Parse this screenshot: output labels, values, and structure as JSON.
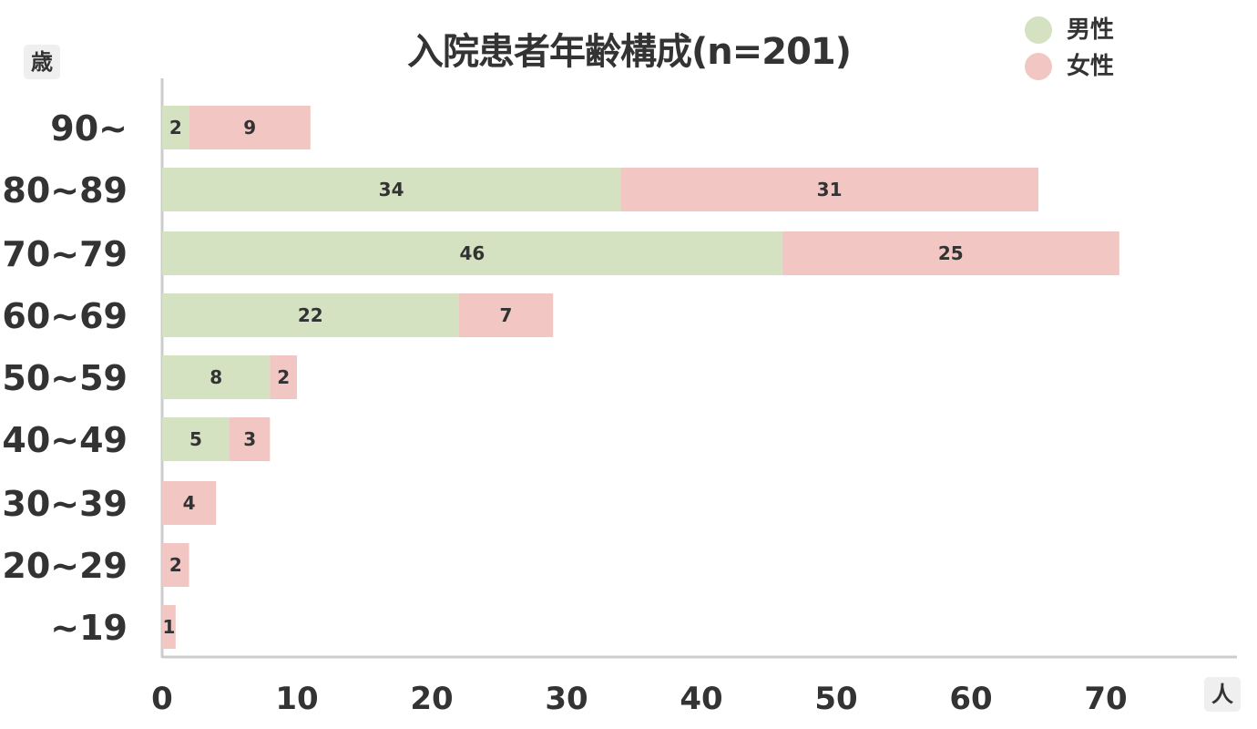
{
  "chart_data": {
    "type": "bar",
    "orientation": "horizontal",
    "stacked": true,
    "title": "入院患者年齢構成(n=201)",
    "y_unit": "歳",
    "x_unit": "人",
    "categories": [
      "90~",
      "80~89",
      "70~79",
      "60~69",
      "50~59",
      "40~49",
      "30~39",
      "20~29",
      "~19"
    ],
    "series": [
      {
        "name": "男性",
        "color": "#d5e2c2",
        "values": [
          2,
          34,
          46,
          22,
          8,
          5,
          0,
          0,
          0
        ]
      },
      {
        "name": "女性",
        "color": "#f2c6c2",
        "values": [
          9,
          31,
          25,
          7,
          2,
          3,
          4,
          2,
          1
        ]
      }
    ],
    "xlim": [
      0,
      84
    ],
    "xticks": [
      0,
      10,
      20,
      30,
      40,
      50,
      60,
      70
    ],
    "grid": false,
    "legend_position": "top-right"
  }
}
